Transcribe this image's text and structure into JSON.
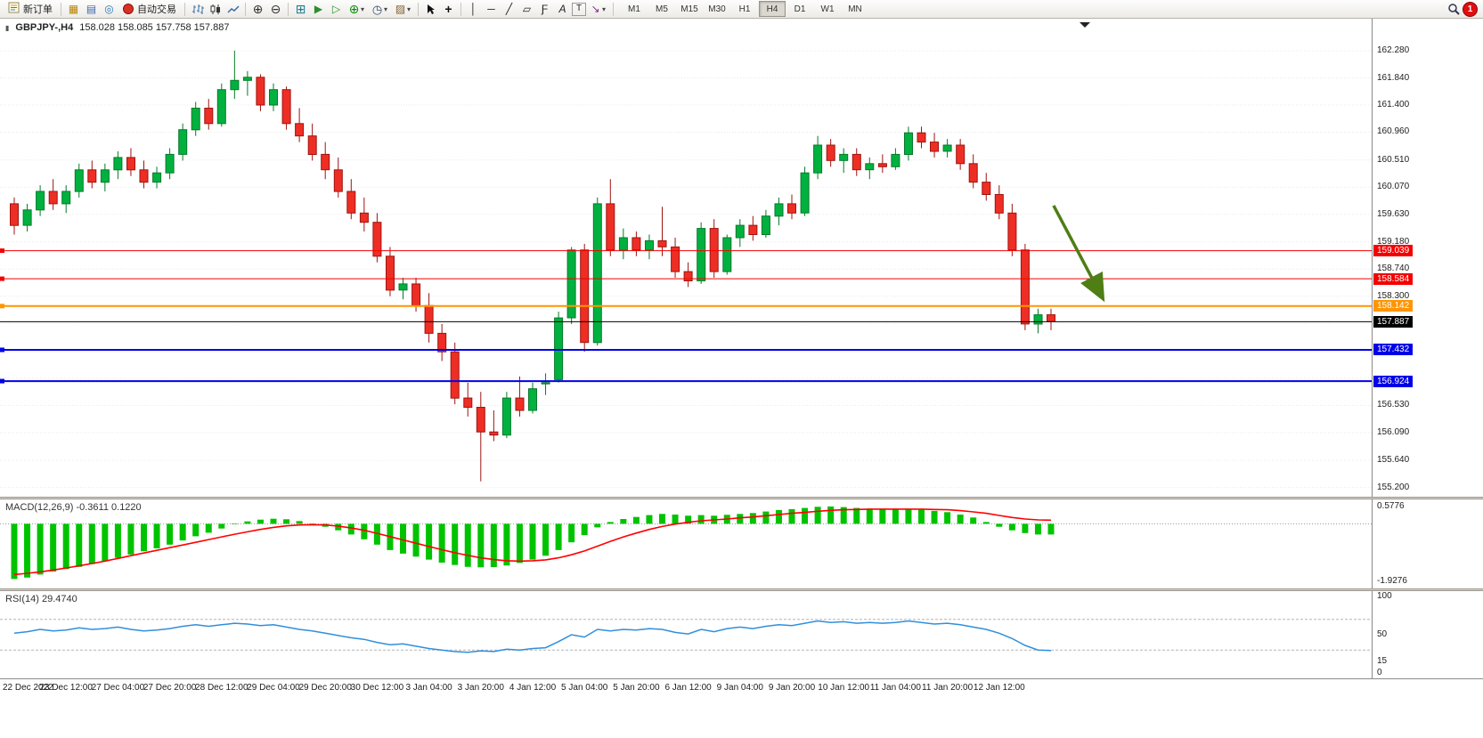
{
  "toolbar": {
    "new_order_label": "新订单",
    "autotrading_label": "自动交易",
    "timeframes": [
      "M1",
      "M5",
      "M15",
      "M30",
      "H1",
      "H4",
      "D1",
      "W1",
      "MN"
    ],
    "active_timeframe": "H4",
    "notification_count": "1",
    "icon_glyphs": {
      "market-watch": "▦",
      "data-window": "▤",
      "navigator": "◎",
      "zoom-in": "⊕",
      "zoom-out": "⊖",
      "tile-windows": "⊞",
      "auto-scroll": "▶",
      "chart-shift": "▷",
      "add-indicator": "⊕",
      "periods": "◷",
      "templates": "▨",
      "crosshair": "+",
      "vertical-line": "│",
      "horizontal-line": "─",
      "trendline": "╱",
      "channel": "▱",
      "fibonacci": "Ƒ",
      "text": "A",
      "text-label": "T",
      "arrows": "↘",
      "caret": "▾"
    }
  },
  "chart": {
    "title": "GBPJPY-,H4",
    "ohlc_text": "158.028 158.085 157.758 157.887",
    "open": "158.028",
    "high": "158.085",
    "low": "157.758",
    "close": "157.887",
    "price_axis_labels": [
      {
        "v": 162.28,
        "text": "162.280"
      },
      {
        "v": 161.84,
        "text": "161.840"
      },
      {
        "v": 161.4,
        "text": "161.400"
      },
      {
        "v": 160.96,
        "text": "160.960"
      },
      {
        "v": 160.51,
        "text": "160.510"
      },
      {
        "v": 160.07,
        "text": "160.070"
      },
      {
        "v": 159.63,
        "text": "159.630"
      },
      {
        "v": 159.18,
        "text": "159.180"
      },
      {
        "v": 158.74,
        "text": "158.740"
      },
      {
        "v": 158.3,
        "text": "158.300"
      },
      {
        "v": 156.53,
        "text": "156.530"
      },
      {
        "v": 156.09,
        "text": "156.090"
      },
      {
        "v": 155.64,
        "text": "155.640"
      },
      {
        "v": 155.2,
        "text": "155.200"
      }
    ],
    "time_axis_labels": [
      "22 Dec 2022",
      "23 Dec 12:00",
      "27 Dec 04:00",
      "27 Dec 20:00",
      "28 Dec 12:00",
      "29 Dec 04:00",
      "29 Dec 20:00",
      "30 Dec 12:00",
      "3 Jan 04:00",
      "3 Jan 20:00",
      "4 Jan 12:00",
      "5 Jan 04:00",
      "5 Jan 20:00",
      "6 Jan 12:00",
      "9 Jan 04:00",
      "9 Jan 20:00",
      "10 Jan 12:00",
      "11 Jan 04:00",
      "11 Jan 20:00",
      "12 Jan 12:00"
    ],
    "hlines": [
      {
        "value": 159.039,
        "label": "159.039",
        "color": "#f40000",
        "width": 1
      },
      {
        "value": 158.584,
        "label": "158.584",
        "color": "#f40000",
        "width": 1
      },
      {
        "value": 158.142,
        "label": "158.142",
        "color": "#ff9500",
        "width": 2
      },
      {
        "value": 157.887,
        "label": "157.887",
        "color": "#000000",
        "width": 1
      },
      {
        "value": 157.432,
        "label": "157.432",
        "color": "#0000e8",
        "width": 2
      },
      {
        "value": 156.924,
        "label": "156.924",
        "color": "#0000e8",
        "width": 2
      }
    ]
  },
  "macd_panel": {
    "label": "MACD(12,26,9) -0.3611 0.1220",
    "scale_marks": [
      {
        "text": "0.5776",
        "v": 0.5776
      },
      {
        "text": "-1.9276",
        "v": -1.9276
      }
    ]
  },
  "rsi_panel": {
    "label": "RSI(14) 29.4740",
    "scale_marks": [
      {
        "text": "100",
        "v": 100
      },
      {
        "text": "50",
        "v": 50
      },
      {
        "text": "15",
        "v": 15
      },
      {
        "text": "0",
        "v": 0
      }
    ]
  },
  "chart_data": {
    "type": "candlestick",
    "symbol": "GBPJPY-",
    "timeframe": "H4",
    "price_top": 162.8,
    "price_bottom": 155.05,
    "grid_prices": [
      162.28,
      161.84,
      161.4,
      160.96,
      160.51,
      160.07,
      159.63,
      159.18,
      158.74,
      158.3,
      157.86,
      157.42,
      156.98,
      156.53,
      156.09,
      155.64,
      155.2
    ],
    "up_color": "#00b140",
    "down_color": "#ee2e24",
    "candles": [
      [
        159.8,
        159.9,
        159.3,
        159.45
      ],
      [
        159.45,
        159.8,
        159.35,
        159.7
      ],
      [
        159.7,
        160.1,
        159.6,
        160.0
      ],
      [
        160.0,
        160.2,
        159.7,
        159.8
      ],
      [
        159.8,
        160.1,
        159.65,
        160.0
      ],
      [
        160.0,
        160.45,
        159.9,
        160.35
      ],
      [
        160.35,
        160.5,
        160.05,
        160.15
      ],
      [
        160.15,
        160.45,
        160.0,
        160.35
      ],
      [
        160.35,
        160.65,
        160.2,
        160.55
      ],
      [
        160.55,
        160.7,
        160.25,
        160.35
      ],
      [
        160.35,
        160.5,
        160.05,
        160.15
      ],
      [
        160.15,
        160.4,
        160.05,
        160.3
      ],
      [
        160.3,
        160.7,
        160.2,
        160.6
      ],
      [
        160.6,
        161.1,
        160.5,
        161.0
      ],
      [
        161.0,
        161.45,
        160.9,
        161.35
      ],
      [
        161.35,
        161.5,
        161.0,
        161.1
      ],
      [
        161.1,
        161.75,
        161.05,
        161.65
      ],
      [
        161.65,
        162.28,
        161.5,
        161.8
      ],
      [
        161.8,
        161.95,
        161.55,
        161.85
      ],
      [
        161.85,
        161.9,
        161.3,
        161.4
      ],
      [
        161.4,
        161.75,
        161.3,
        161.65
      ],
      [
        161.65,
        161.7,
        161.0,
        161.1
      ],
      [
        161.1,
        161.35,
        160.8,
        160.9
      ],
      [
        160.9,
        161.1,
        160.5,
        160.6
      ],
      [
        160.6,
        160.8,
        160.2,
        160.35
      ],
      [
        160.35,
        160.55,
        159.9,
        160.0
      ],
      [
        160.0,
        160.2,
        159.55,
        159.65
      ],
      [
        159.65,
        159.9,
        159.35,
        159.5
      ],
      [
        159.5,
        159.65,
        158.85,
        158.95
      ],
      [
        158.95,
        159.1,
        158.3,
        158.4
      ],
      [
        158.4,
        158.6,
        158.25,
        158.5
      ],
      [
        158.5,
        158.6,
        158.05,
        158.15
      ],
      [
        158.15,
        158.35,
        157.55,
        157.7
      ],
      [
        157.7,
        157.85,
        157.25,
        157.4
      ],
      [
        157.4,
        157.55,
        156.55,
        156.65
      ],
      [
        156.65,
        156.9,
        156.35,
        156.5
      ],
      [
        156.5,
        156.75,
        155.3,
        156.1
      ],
      [
        156.1,
        156.45,
        155.95,
        156.05
      ],
      [
        156.05,
        156.75,
        156.0,
        156.65
      ],
      [
        156.65,
        157.0,
        156.35,
        156.45
      ],
      [
        156.45,
        156.9,
        156.4,
        156.8
      ],
      [
        156.88,
        157.05,
        156.7,
        156.9
      ],
      [
        156.95,
        158.05,
        156.9,
        157.95
      ],
      [
        157.95,
        159.1,
        157.85,
        159.05
      ],
      [
        159.05,
        159.15,
        157.4,
        157.55
      ],
      [
        157.55,
        159.9,
        157.5,
        159.8
      ],
      [
        159.8,
        160.2,
        158.95,
        159.05
      ],
      [
        159.05,
        159.4,
        158.9,
        159.25
      ],
      [
        159.25,
        159.35,
        158.95,
        159.05
      ],
      [
        159.05,
        159.3,
        158.9,
        159.2
      ],
      [
        159.2,
        159.75,
        158.95,
        159.1
      ],
      [
        159.1,
        159.25,
        158.6,
        158.7
      ],
      [
        158.7,
        158.85,
        158.45,
        158.55
      ],
      [
        158.55,
        159.5,
        158.5,
        159.4
      ],
      [
        159.4,
        159.55,
        158.6,
        158.7
      ],
      [
        158.7,
        159.3,
        158.65,
        159.25
      ],
      [
        159.25,
        159.55,
        159.1,
        159.45
      ],
      [
        159.45,
        159.6,
        159.2,
        159.3
      ],
      [
        159.3,
        159.7,
        159.25,
        159.6
      ],
      [
        159.6,
        159.9,
        159.45,
        159.8
      ],
      [
        159.8,
        159.95,
        159.55,
        159.65
      ],
      [
        159.65,
        160.4,
        159.6,
        160.3
      ],
      [
        160.3,
        160.9,
        160.2,
        160.75
      ],
      [
        160.75,
        160.85,
        160.4,
        160.5
      ],
      [
        160.5,
        160.7,
        160.3,
        160.6
      ],
      [
        160.6,
        160.7,
        160.25,
        160.35
      ],
      [
        160.35,
        160.55,
        160.2,
        160.45
      ],
      [
        160.45,
        160.6,
        160.3,
        160.4
      ],
      [
        160.4,
        160.7,
        160.35,
        160.6
      ],
      [
        160.6,
        161.05,
        160.5,
        160.95
      ],
      [
        160.95,
        161.05,
        160.7,
        160.8
      ],
      [
        160.8,
        160.95,
        160.55,
        160.65
      ],
      [
        160.65,
        160.85,
        160.55,
        160.75
      ],
      [
        160.75,
        160.85,
        160.35,
        160.45
      ],
      [
        160.45,
        160.6,
        160.05,
        160.15
      ],
      [
        160.15,
        160.3,
        159.85,
        159.95
      ],
      [
        159.95,
        160.1,
        159.55,
        159.65
      ],
      [
        159.65,
        159.8,
        158.95,
        159.05
      ],
      [
        159.05,
        159.15,
        157.75,
        157.85
      ],
      [
        157.85,
        158.1,
        157.7,
        158.0
      ],
      [
        158.0,
        158.1,
        157.75,
        157.89
      ]
    ],
    "macd": {
      "range": [
        -1.9276,
        0.5776
      ],
      "histogram_color": "#00c300",
      "signal_color": "#ff0000",
      "histogram": [
        -1.85,
        -1.8,
        -1.7,
        -1.6,
        -1.52,
        -1.44,
        -1.35,
        -1.25,
        -1.14,
        -1.03,
        -0.92,
        -0.82,
        -0.7,
        -0.56,
        -0.42,
        -0.3,
        -0.16,
        -0.02,
        0.08,
        0.14,
        0.17,
        0.15,
        0.09,
        0.01,
        -0.1,
        -0.22,
        -0.36,
        -0.52,
        -0.7,
        -0.88,
        -1.0,
        -1.1,
        -1.2,
        -1.3,
        -1.38,
        -1.44,
        -1.46,
        -1.45,
        -1.4,
        -1.31,
        -1.2,
        -1.07,
        -0.88,
        -0.62,
        -0.38,
        -0.12,
        0.06,
        0.16,
        0.23,
        0.29,
        0.33,
        0.31,
        0.27,
        0.29,
        0.27,
        0.3,
        0.33,
        0.36,
        0.41,
        0.46,
        0.49,
        0.53,
        0.57,
        0.58,
        0.56,
        0.53,
        0.51,
        0.49,
        0.48,
        0.49,
        0.47,
        0.43,
        0.39,
        0.31,
        0.21,
        0.06,
        -0.1,
        -0.22,
        -0.31,
        -0.36,
        -0.36
      ],
      "signal": [
        -1.7,
        -1.66,
        -1.61,
        -1.55,
        -1.48,
        -1.41,
        -1.33,
        -1.25,
        -1.16,
        -1.07,
        -0.98,
        -0.89,
        -0.8,
        -0.71,
        -0.62,
        -0.53,
        -0.44,
        -0.35,
        -0.27,
        -0.19,
        -0.12,
        -0.07,
        -0.04,
        -0.03,
        -0.04,
        -0.08,
        -0.14,
        -0.22,
        -0.32,
        -0.43,
        -0.54,
        -0.65,
        -0.76,
        -0.87,
        -0.97,
        -1.06,
        -1.14,
        -1.2,
        -1.24,
        -1.25,
        -1.24,
        -1.21,
        -1.14,
        -1.04,
        -0.91,
        -0.75,
        -0.59,
        -0.44,
        -0.31,
        -0.19,
        -0.09,
        -0.01,
        0.05,
        0.1,
        0.13,
        0.16,
        0.2,
        0.23,
        0.27,
        0.31,
        0.35,
        0.38,
        0.42,
        0.45,
        0.47,
        0.48,
        0.49,
        0.49,
        0.49,
        0.49,
        0.49,
        0.48,
        0.47,
        0.44,
        0.4,
        0.35,
        0.28,
        0.21,
        0.16,
        0.13,
        0.12
      ]
    },
    "rsi": {
      "range": [
        0,
        100
      ],
      "line_color": "#2f8fdd",
      "levels": [
        70,
        30
      ],
      "values": [
        52,
        54,
        57,
        55,
        56,
        59,
        57,
        58,
        60,
        57,
        55,
        56,
        58,
        61,
        63,
        61,
        63,
        65,
        64,
        62,
        63,
        60,
        57,
        55,
        52,
        49,
        46,
        44,
        40,
        37,
        38,
        35,
        32,
        30,
        28,
        27,
        29,
        28,
        31,
        30,
        32,
        33,
        41,
        50,
        47,
        57,
        55,
        57,
        56,
        58,
        57,
        53,
        51,
        57,
        54,
        58,
        60,
        58,
        61,
        63,
        62,
        65,
        68,
        66,
        67,
        65,
        66,
        65,
        66,
        68,
        66,
        64,
        65,
        63,
        60,
        57,
        52,
        45,
        36,
        30,
        29.47
      ]
    },
    "annotations": [
      {
        "type": "arrow",
        "color": "#4e7e14",
        "from_bar": 80.2,
        "from_price": 159.77,
        "to_bar": 83.8,
        "to_price": 158.34
      }
    ]
  }
}
